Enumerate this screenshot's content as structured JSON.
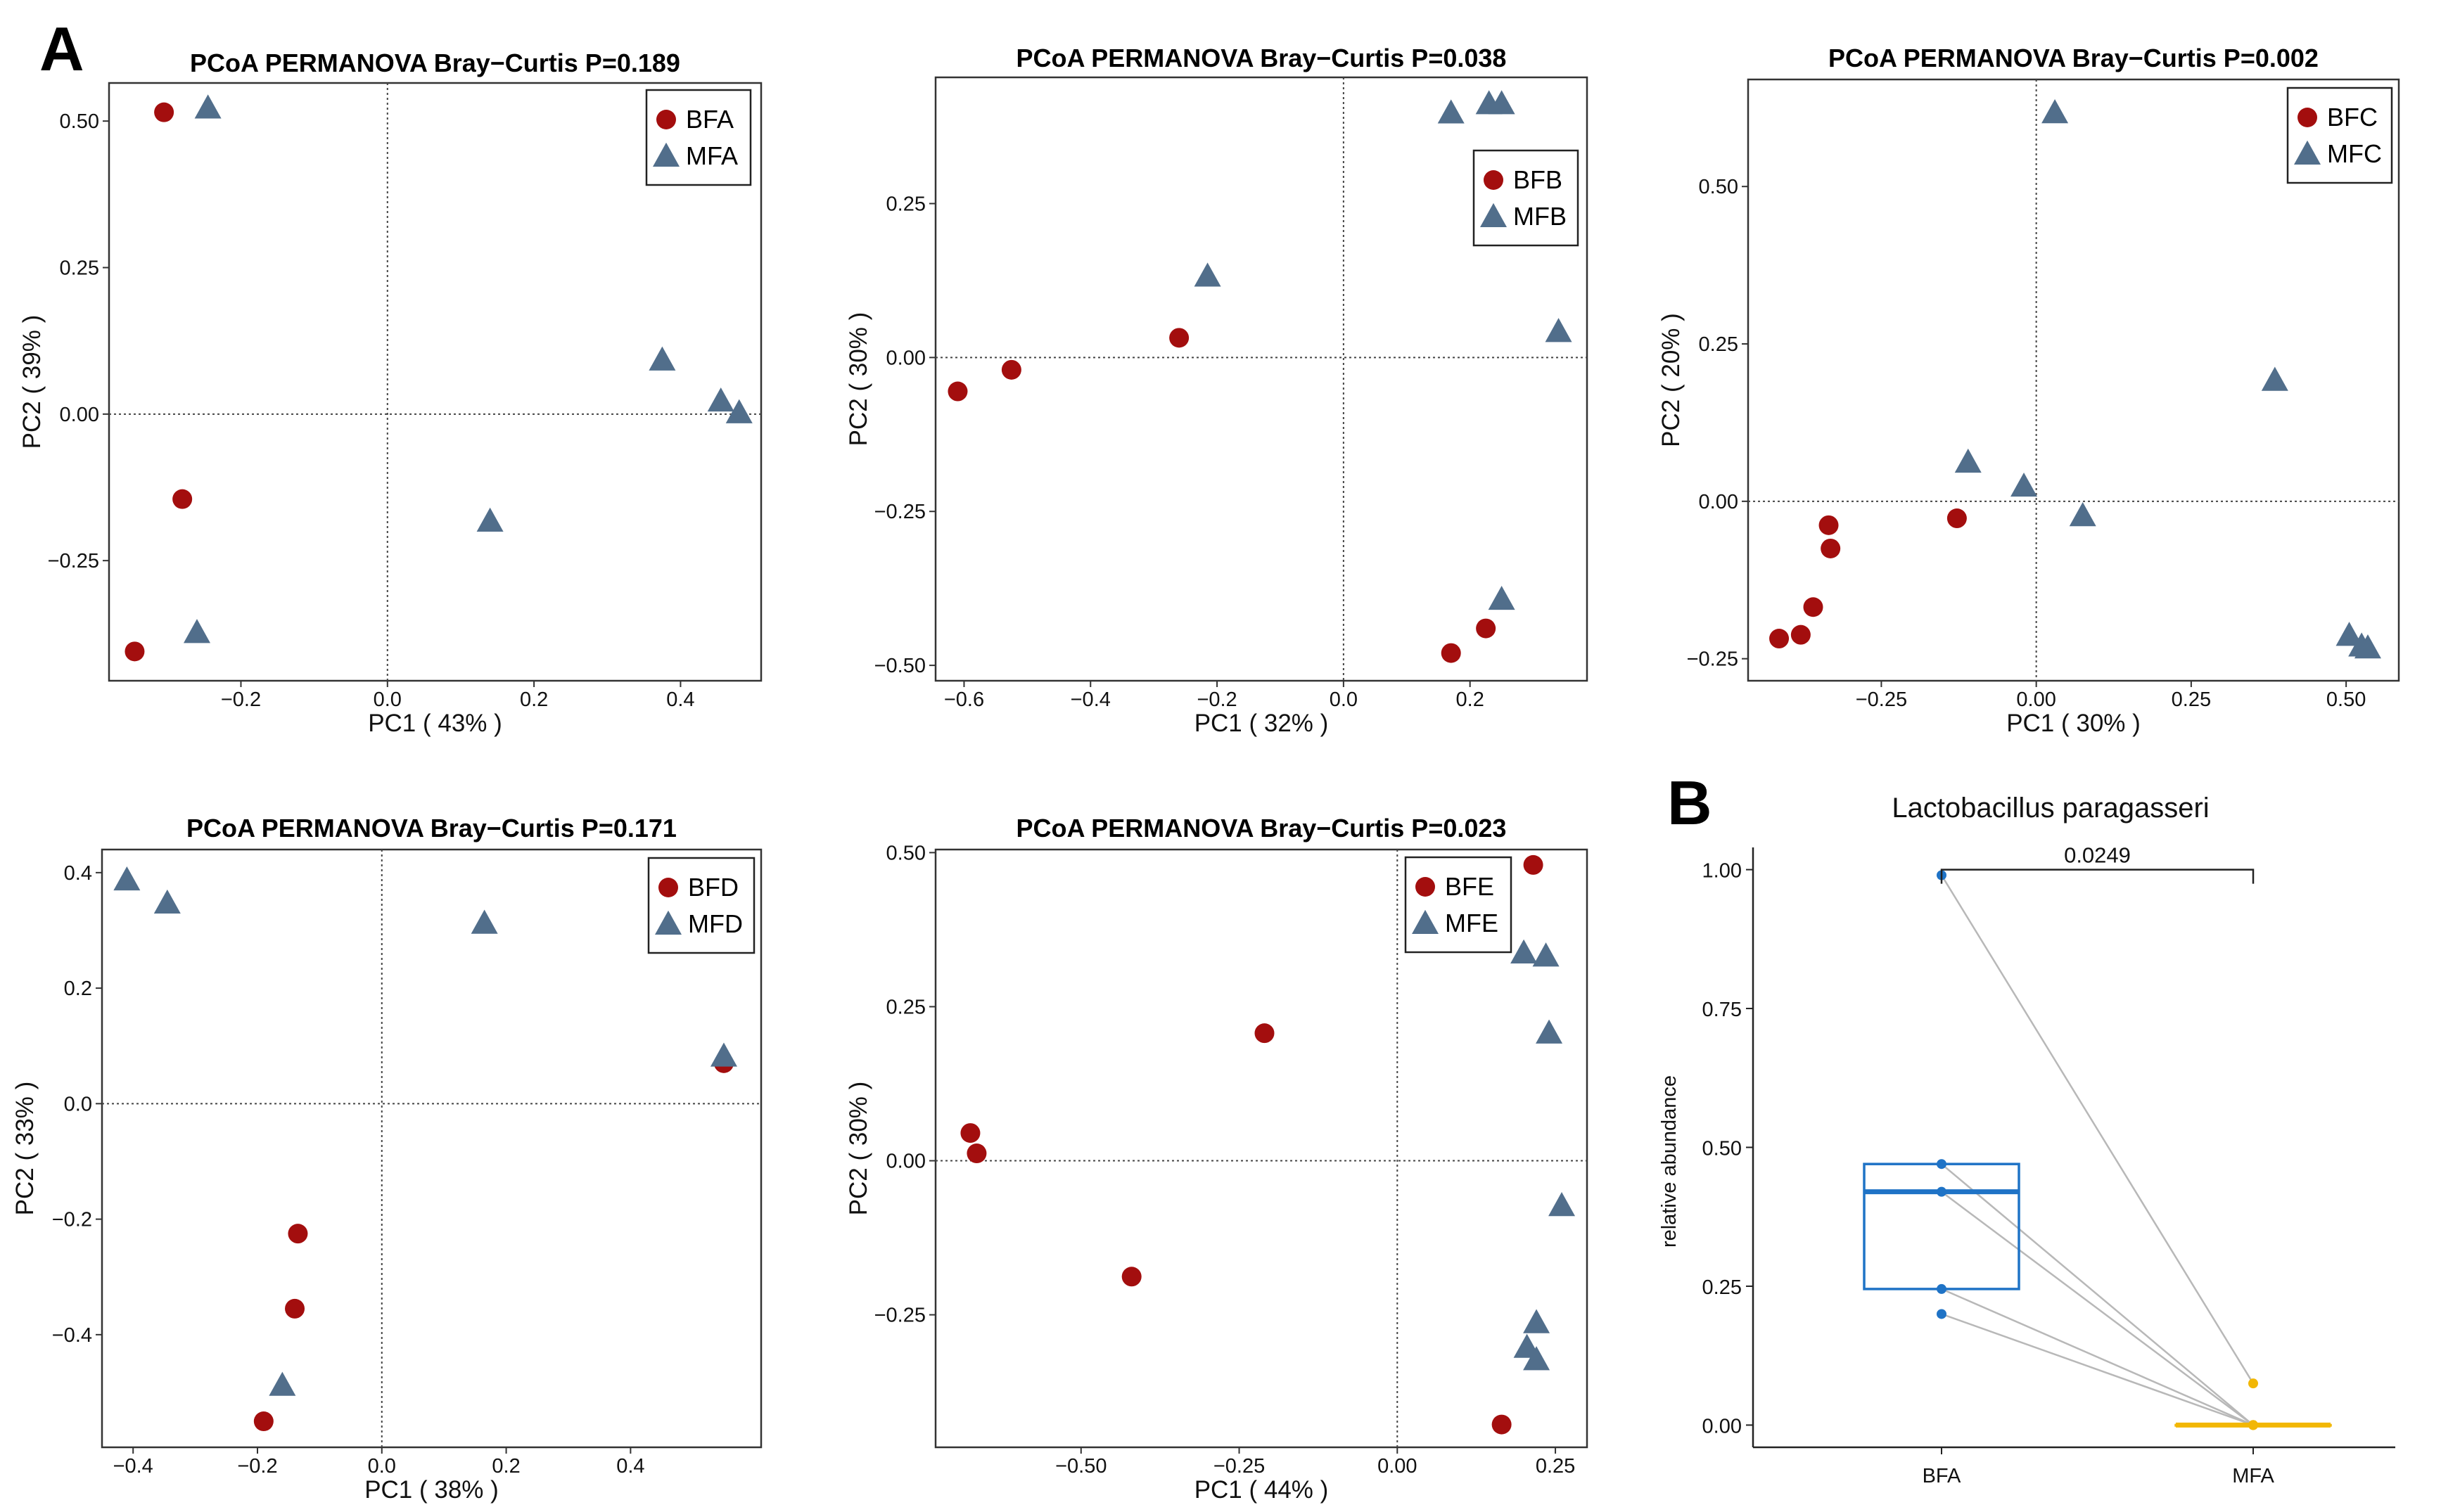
{
  "panel_labels": {
    "a": "A",
    "b": "B"
  },
  "colors": {
    "group1": "#a30e0e",
    "group2": "#516e8b",
    "bfa": "#1f73c6",
    "mfa": "#f2b705",
    "pair_line": "#b8b8b8"
  },
  "chart_data": [
    {
      "type": "scatter",
      "title": "PCoA PERMANOVA Bray−Curtis P=0.189",
      "xlabel": "PC1 ( 43% )",
      "ylabel": "PC2 ( 39% )",
      "xlim": [
        -0.38,
        0.51
      ],
      "ylim": [
        -0.455,
        0.565
      ],
      "xticks": [
        -0.2,
        0.0,
        0.2,
        0.4
      ],
      "xtick_labels": [
        "−0.2",
        "0.0",
        "0.2",
        "0.4"
      ],
      "yticks": [
        -0.25,
        0.0,
        0.25,
        0.5
      ],
      "ytick_labels": [
        "−0.25",
        "0.00",
        "0.25",
        "0.50"
      ],
      "legend": [
        "BFA",
        "MFA"
      ],
      "series": [
        {
          "name": "BFA",
          "marker": "circle",
          "points": [
            [
              -0.305,
              0.515
            ],
            [
              -0.28,
              -0.145
            ],
            [
              -0.345,
              -0.405
            ]
          ]
        },
        {
          "name": "MFA",
          "marker": "triangle",
          "points": [
            [
              -0.245,
              0.52
            ],
            [
              -0.26,
              -0.375
            ],
            [
              0.14,
              -0.185
            ],
            [
              0.375,
              0.09
            ],
            [
              0.455,
              0.02
            ],
            [
              0.48,
              0.0
            ]
          ]
        }
      ]
    },
    {
      "type": "scatter",
      "title": "PCoA PERMANOVA Bray−Curtis  P=0.038",
      "xlabel": "PC1 ( 32% )",
      "ylabel": "PC2 ( 30% )",
      "xlim": [
        -0.645,
        0.385
      ],
      "ylim": [
        -0.525,
        0.455
      ],
      "xticks": [
        -0.6,
        -0.4,
        -0.2,
        0.0,
        0.2
      ],
      "xtick_labels": [
        "−0.6",
        "−0.4",
        "−0.2",
        "0.0",
        "0.2"
      ],
      "yticks": [
        -0.5,
        -0.25,
        0.0,
        0.25
      ],
      "ytick_labels": [
        "−0.50",
        "−0.25",
        "0.00",
        "0.25"
      ],
      "legend": [
        "BFB",
        "MFB"
      ],
      "series": [
        {
          "name": "BFB",
          "marker": "circle",
          "points": [
            [
              -0.61,
              -0.055
            ],
            [
              -0.525,
              -0.02
            ],
            [
              -0.26,
              0.032
            ],
            [
              0.17,
              -0.48
            ],
            [
              0.225,
              -0.44
            ]
          ]
        },
        {
          "name": "MFB",
          "marker": "triangle",
          "points": [
            [
              -0.215,
              0.13
            ],
            [
              0.17,
              0.395
            ],
            [
              0.23,
              0.41
            ],
            [
              0.25,
              0.41
            ],
            [
              0.25,
              -0.395
            ],
            [
              0.34,
              0.04
            ]
          ]
        }
      ]
    },
    {
      "type": "scatter",
      "title": "PCoA PERMANOVA  Bray−Curtis P=0.002",
      "xlabel": "PC1 ( 30% )",
      "ylabel": "PC2 ( 20% )",
      "xlim": [
        -0.465,
        0.585
      ],
      "ylim": [
        -0.285,
        0.67
      ],
      "xticks": [
        -0.25,
        0.0,
        0.25,
        0.5
      ],
      "xtick_labels": [
        "−0.25",
        "0.00",
        "0.25",
        "0.50"
      ],
      "yticks": [
        -0.25,
        0.0,
        0.25,
        0.5
      ],
      "ytick_labels": [
        "−0.25",
        "0.00",
        "0.25",
        "0.50"
      ],
      "legend": [
        "BFC",
        "MFC"
      ],
      "series": [
        {
          "name": "BFC",
          "marker": "circle",
          "points": [
            [
              -0.415,
              -0.218
            ],
            [
              -0.38,
              -0.212
            ],
            [
              -0.36,
              -0.168
            ],
            [
              -0.335,
              -0.038
            ],
            [
              -0.332,
              -0.075
            ],
            [
              -0.128,
              -0.027
            ]
          ]
        },
        {
          "name": "MFC",
          "marker": "triangle",
          "points": [
            [
              -0.11,
              0.06
            ],
            [
              -0.02,
              0.022
            ],
            [
              0.03,
              0.615
            ],
            [
              0.075,
              -0.025
            ],
            [
              0.385,
              0.19
            ],
            [
              0.505,
              -0.215
            ],
            [
              0.525,
              -0.232
            ],
            [
              0.535,
              -0.235
            ]
          ]
        }
      ]
    },
    {
      "type": "scatter",
      "title": "PCoA PERMANOVA Bray−Curtis P=0.171",
      "xlabel": "PC1 ( 38% )",
      "ylabel": "PC2 ( 33% )",
      "xlim": [
        -0.45,
        0.61
      ],
      "ylim": [
        -0.595,
        0.44
      ],
      "xticks": [
        -0.4,
        -0.2,
        0.0,
        0.2,
        0.4
      ],
      "xtick_labels": [
        "−0.4",
        "−0.2",
        "0.0",
        "0.2",
        "0.4"
      ],
      "yticks": [
        -0.4,
        -0.2,
        0.0,
        0.2,
        0.4
      ],
      "ytick_labels": [
        "−0.4",
        "−0.2",
        "0.0",
        "0.2",
        "0.4"
      ],
      "legend": [
        "BFD",
        "MFD"
      ],
      "series": [
        {
          "name": "BFD",
          "marker": "circle",
          "points": [
            [
              -0.135,
              -0.225
            ],
            [
              -0.14,
              -0.355
            ],
            [
              -0.19,
              -0.55
            ],
            [
              0.55,
              0.07
            ]
          ]
        },
        {
          "name": "MFD",
          "marker": "triangle",
          "points": [
            [
              -0.41,
              0.385
            ],
            [
              -0.345,
              0.345
            ],
            [
              -0.16,
              -0.49
            ],
            [
              0.165,
              0.31
            ],
            [
              0.55,
              0.08
            ]
          ]
        }
      ]
    },
    {
      "type": "scatter",
      "title": "PCoA PERMANOVA Bray−Curtis  P=0.023",
      "xlabel": "PC1 ( 44% )",
      "ylabel": "PC2 ( 30% )",
      "xlim": [
        -0.73,
        0.3
      ],
      "ylim": [
        -0.465,
        0.505
      ],
      "xticks": [
        -0.5,
        -0.25,
        0.0,
        0.25
      ],
      "xtick_labels": [
        "−0.50",
        "−0.25",
        "0.00",
        "0.25"
      ],
      "yticks": [
        -0.25,
        0.0,
        0.25,
        0.5
      ],
      "ytick_labels": [
        "−0.25",
        "0.00",
        "0.25",
        "0.50"
      ],
      "legend": [
        "BFE",
        "MFE"
      ],
      "series": [
        {
          "name": "BFE",
          "marker": "circle",
          "points": [
            [
              -0.675,
              0.045
            ],
            [
              -0.665,
              0.012
            ],
            [
              -0.42,
              -0.188
            ],
            [
              -0.21,
              0.207
            ],
            [
              0.165,
              -0.428
            ],
            [
              0.215,
              0.48
            ]
          ]
        },
        {
          "name": "MFE",
          "marker": "triangle",
          "points": [
            [
              0.2,
              0.335
            ],
            [
              0.235,
              0.33
            ],
            [
              0.24,
              0.205
            ],
            [
              0.26,
              -0.075
            ],
            [
              0.22,
              -0.265
            ],
            [
              0.205,
              -0.305
            ],
            [
              0.22,
              -0.325
            ]
          ]
        }
      ]
    },
    {
      "type": "box_paired",
      "title": "Lactobacillus paragasseri",
      "xlabel": "",
      "ylabel": "relative abundance",
      "categories": [
        "BFA",
        "MFA"
      ],
      "ylim": [
        -0.04,
        1.04
      ],
      "yticks": [
        0.0,
        0.25,
        0.5,
        0.75,
        1.0
      ],
      "ytick_labels": [
        "0.00",
        "0.25",
        "0.50",
        "0.75",
        "1.00"
      ],
      "box": [
        {
          "group": "BFA",
          "q1": 0.245,
          "median": 0.42,
          "q3": 0.47
        },
        {
          "group": "MFA",
          "q1": 0.0,
          "median": 0.0,
          "q3": 0.0
        }
      ],
      "points": {
        "BFA": [
          0.99,
          0.47,
          0.42,
          0.245,
          0.2
        ],
        "MFA": [
          0.075,
          0.0,
          0.0,
          0.0,
          0.0
        ]
      },
      "pairs": [
        [
          0.99,
          0.075
        ],
        [
          0.47,
          0.0
        ],
        [
          0.42,
          0.0
        ],
        [
          0.245,
          0.0
        ],
        [
          0.2,
          0.0
        ]
      ],
      "p_value": "0.0249"
    }
  ]
}
